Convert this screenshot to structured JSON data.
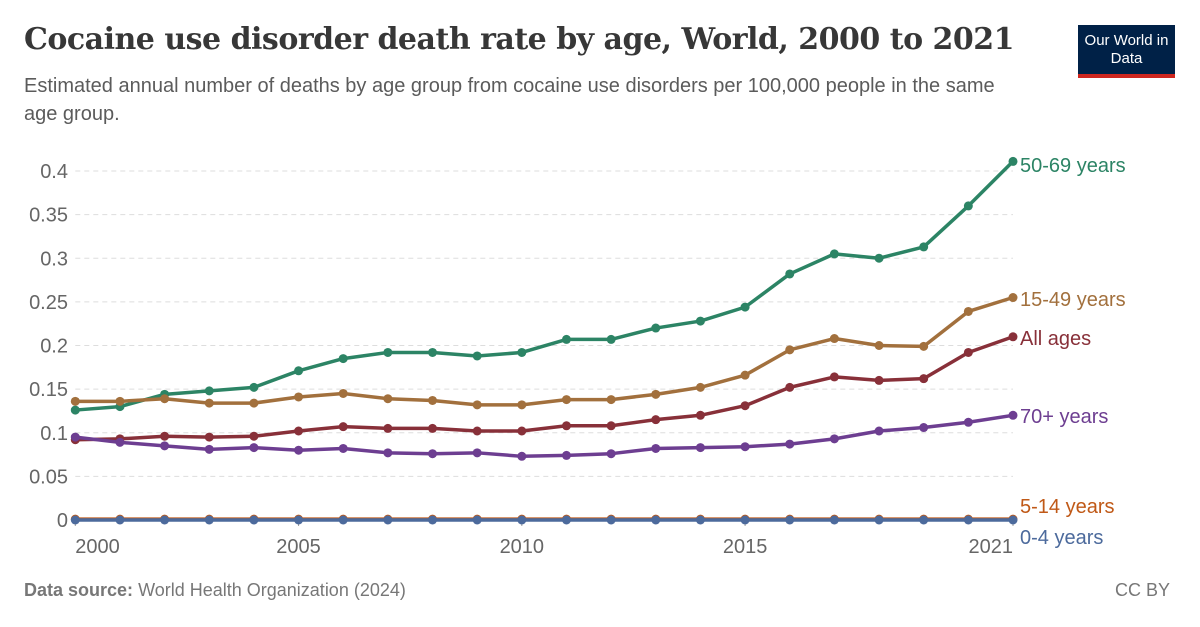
{
  "header": {
    "title": "Cocaine use disorder death rate by age, World, 2000 to 2021",
    "subtitle": "Estimated annual number of deaths by age group from cocaine use disorders per 100,000 people in the same age group.",
    "logo": "Our World in Data"
  },
  "footer": {
    "source_label": "Data source:",
    "source": "World Health Organization (2024)",
    "license": "CC BY"
  },
  "chart_data": {
    "type": "line",
    "title": "Cocaine use disorder death rate by age, World, 2000 to 2021",
    "xlabel": "",
    "ylabel": "",
    "x": [
      2000,
      2001,
      2002,
      2003,
      2004,
      2005,
      2006,
      2007,
      2008,
      2009,
      2010,
      2011,
      2012,
      2013,
      2014,
      2015,
      2016,
      2017,
      2018,
      2019,
      2020,
      2021
    ],
    "xticks": [
      "2000",
      "2005",
      "2010",
      "2015",
      "2021"
    ],
    "yticks": [
      "0",
      "0.05",
      "0.1",
      "0.15",
      "0.2",
      "0.25",
      "0.3",
      "0.35",
      "0.4"
    ],
    "ylim": [
      0,
      0.4
    ],
    "grid": "horizontal dashed",
    "legend": "line-end labels right",
    "series": [
      {
        "name": "50-69 years",
        "color": "#2c8465",
        "values": [
          0.126,
          0.13,
          0.144,
          0.148,
          0.152,
          0.171,
          0.185,
          0.192,
          0.192,
          0.188,
          0.192,
          0.207,
          0.207,
          0.22,
          0.228,
          0.244,
          0.282,
          0.305,
          0.3,
          0.313,
          0.36,
          0.411
        ]
      },
      {
        "name": "15-49 years",
        "color": "#a2703d",
        "values": [
          0.136,
          0.136,
          0.139,
          0.134,
          0.134,
          0.141,
          0.145,
          0.139,
          0.137,
          0.132,
          0.132,
          0.138,
          0.138,
          0.144,
          0.152,
          0.166,
          0.195,
          0.208,
          0.2,
          0.199,
          0.239,
          0.255
        ]
      },
      {
        "name": "All ages",
        "color": "#883039",
        "values": [
          0.092,
          0.093,
          0.096,
          0.095,
          0.096,
          0.102,
          0.107,
          0.105,
          0.105,
          0.102,
          0.102,
          0.108,
          0.108,
          0.115,
          0.12,
          0.131,
          0.152,
          0.164,
          0.16,
          0.162,
          0.192,
          0.21
        ]
      },
      {
        "name": "70+ years",
        "color": "#6d3e91",
        "values": [
          0.095,
          0.089,
          0.085,
          0.081,
          0.083,
          0.08,
          0.082,
          0.077,
          0.076,
          0.077,
          0.073,
          0.074,
          0.076,
          0.082,
          0.083,
          0.084,
          0.087,
          0.093,
          0.102,
          0.106,
          0.112,
          0.12
        ]
      },
      {
        "name": "5-14 years",
        "color": "#c05917",
        "values": [
          0.001,
          0.001,
          0.001,
          0.001,
          0.001,
          0.001,
          0.001,
          0.001,
          0.001,
          0.001,
          0.001,
          0.001,
          0.001,
          0.001,
          0.001,
          0.001,
          0.001,
          0.001,
          0.001,
          0.001,
          0.001,
          0.001
        ]
      },
      {
        "name": "0-4 years",
        "color": "#4c6a9c",
        "values": [
          0,
          0,
          0,
          0,
          0,
          0,
          0,
          0,
          0,
          0,
          0,
          0,
          0,
          0,
          0,
          0,
          0,
          0,
          0,
          0,
          0,
          0
        ]
      }
    ]
  }
}
